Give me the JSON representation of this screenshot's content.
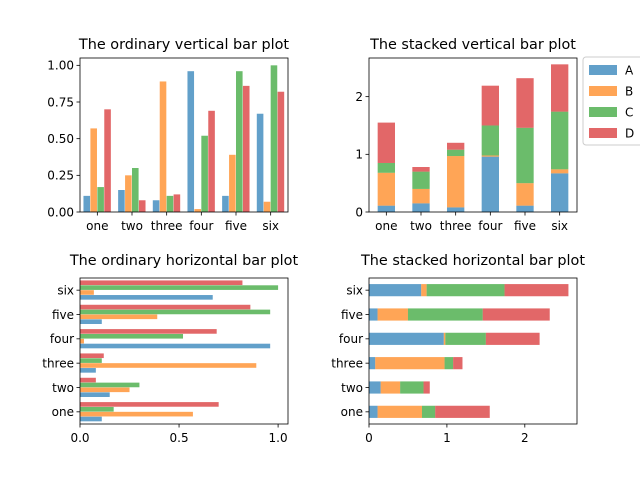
{
  "chart_data": [
    {
      "type": "bar",
      "orientation": "vertical",
      "stacked": false,
      "title": "The ordinary vertical bar plot",
      "categories": [
        "one",
        "two",
        "three",
        "four",
        "five",
        "six"
      ],
      "series": [
        {
          "name": "A",
          "values": [
            0.11,
            0.15,
            0.08,
            0.96,
            0.11,
            0.67
          ]
        },
        {
          "name": "B",
          "values": [
            0.57,
            0.25,
            0.89,
            0.02,
            0.39,
            0.07
          ]
        },
        {
          "name": "C",
          "values": [
            0.17,
            0.3,
            0.11,
            0.52,
            0.96,
            1.0
          ]
        },
        {
          "name": "D",
          "values": [
            0.7,
            0.08,
            0.12,
            0.69,
            0.86,
            0.82
          ]
        }
      ],
      "ylim": [
        0,
        1.05
      ],
      "yticks": [
        0.0,
        0.25,
        0.5,
        0.75,
        1.0
      ],
      "ytick_labels": [
        "0.00",
        "0.25",
        "0.50",
        "0.75",
        "1.00"
      ]
    },
    {
      "type": "bar",
      "orientation": "vertical",
      "stacked": true,
      "title": "The stacked vertical bar plot",
      "categories": [
        "one",
        "two",
        "three",
        "four",
        "five",
        "six"
      ],
      "series": [
        {
          "name": "A",
          "values": [
            0.11,
            0.15,
            0.08,
            0.96,
            0.11,
            0.67
          ]
        },
        {
          "name": "B",
          "values": [
            0.57,
            0.25,
            0.89,
            0.02,
            0.39,
            0.07
          ]
        },
        {
          "name": "C",
          "values": [
            0.17,
            0.3,
            0.11,
            0.52,
            0.96,
            1.0
          ]
        },
        {
          "name": "D",
          "values": [
            0.7,
            0.08,
            0.12,
            0.69,
            0.86,
            0.82
          ]
        }
      ],
      "ylim": [
        0,
        2.67
      ],
      "yticks": [
        0,
        1,
        2
      ],
      "ytick_labels": [
        "0",
        "1",
        "2"
      ],
      "legend": {
        "position": "outside-right",
        "entries": [
          "A",
          "B",
          "C",
          "D"
        ]
      }
    },
    {
      "type": "bar",
      "orientation": "horizontal",
      "stacked": false,
      "title": "The ordinary horizontal bar plot",
      "categories": [
        "one",
        "two",
        "three",
        "four",
        "five",
        "six"
      ],
      "series": [
        {
          "name": "A",
          "values": [
            0.11,
            0.15,
            0.08,
            0.96,
            0.11,
            0.67
          ]
        },
        {
          "name": "B",
          "values": [
            0.57,
            0.25,
            0.89,
            0.02,
            0.39,
            0.07
          ]
        },
        {
          "name": "C",
          "values": [
            0.17,
            0.3,
            0.11,
            0.52,
            0.96,
            1.0
          ]
        },
        {
          "name": "D",
          "values": [
            0.7,
            0.08,
            0.12,
            0.69,
            0.86,
            0.82
          ]
        }
      ],
      "xlim": [
        0,
        1.05
      ],
      "xticks": [
        0.0,
        0.5,
        1.0
      ],
      "xtick_labels": [
        "0.0",
        "0.5",
        "1.0"
      ]
    },
    {
      "type": "bar",
      "orientation": "horizontal",
      "stacked": true,
      "title": "The stacked horizontal bar plot",
      "categories": [
        "one",
        "two",
        "three",
        "four",
        "five",
        "six"
      ],
      "series": [
        {
          "name": "A",
          "values": [
            0.11,
            0.15,
            0.08,
            0.96,
            0.11,
            0.67
          ]
        },
        {
          "name": "B",
          "values": [
            0.57,
            0.25,
            0.89,
            0.02,
            0.39,
            0.07
          ]
        },
        {
          "name": "C",
          "values": [
            0.17,
            0.3,
            0.11,
            0.52,
            0.96,
            1.0
          ]
        },
        {
          "name": "D",
          "values": [
            0.7,
            0.08,
            0.12,
            0.69,
            0.86,
            0.82
          ]
        }
      ],
      "xlim": [
        0,
        2.67
      ],
      "xticks": [
        0,
        1,
        2
      ],
      "xtick_labels": [
        "0",
        "1",
        "2"
      ]
    }
  ],
  "colors": {
    "A": "#1f77b4",
    "B": "#ff7f0e",
    "C": "#2ca02c",
    "D": "#d62728"
  },
  "bar_opacity": 0.7
}
